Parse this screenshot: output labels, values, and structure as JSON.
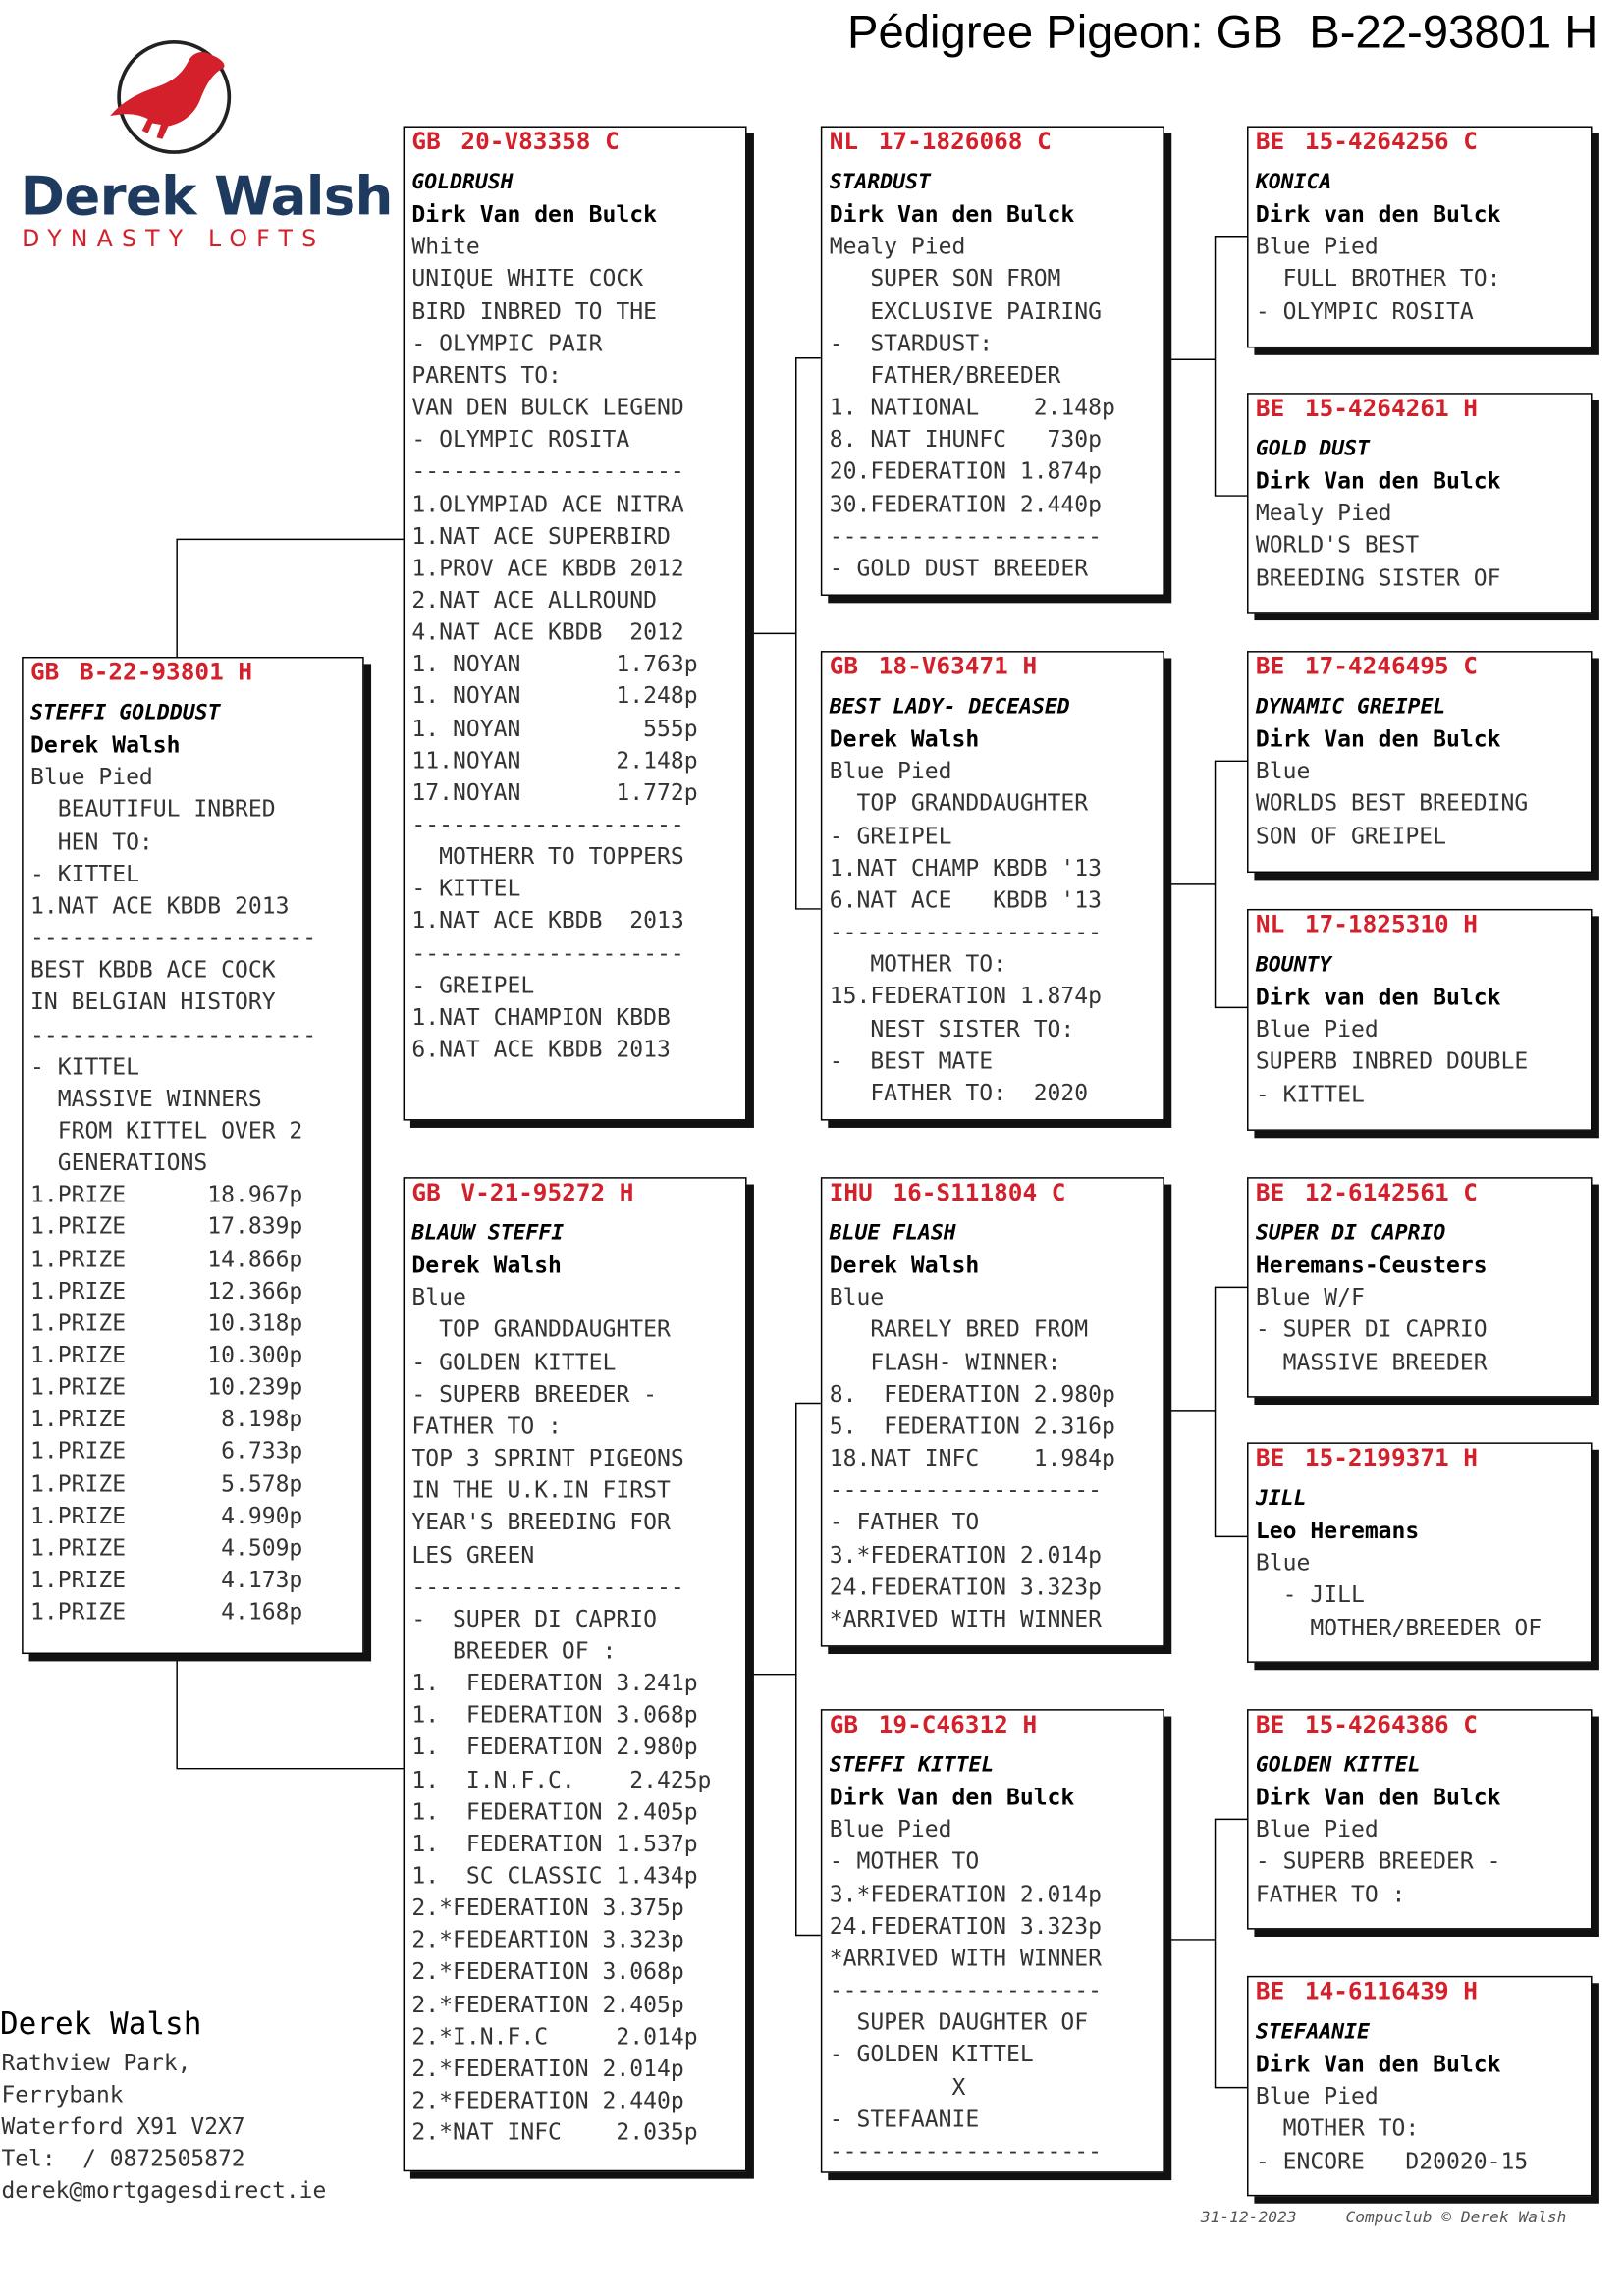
{
  "header": {
    "title": "Pédigree Pigeon: GB  B-22-93801 H"
  },
  "logo": {
    "name": "Derek Walsh",
    "tagline": "DYNASTY LOFTS"
  },
  "boxes": [
    {
      "country": "GB",
      "ring": "B-22-93801 H",
      "name": "STEFFI GOLDDUST",
      "breeder": "Derek Walsh",
      "color": "Blue Pied",
      "lines": [
        "  BEAUTIFUL INBRED",
        "  HEN TO:",
        "- KITTEL",
        "1.NAT ACE KBDB 2013",
        "---------------------",
        "BEST KBDB ACE COCK",
        "IN BELGIAN HISTORY",
        "---------------------",
        "- KITTEL",
        "  MASSIVE WINNERS",
        "  FROM KITTEL OVER 2",
        "  GENERATIONS",
        "1.PRIZE      18.967p",
        "1.PRIZE      17.839p",
        "1.PRIZE      14.866p",
        "1.PRIZE      12.366p",
        "1.PRIZE      10.318p",
        "1.PRIZE      10.300p",
        "1.PRIZE      10.239p",
        "1.PRIZE       8.198p",
        "1.PRIZE       6.733p",
        "1.PRIZE       5.578p",
        "1.PRIZE       4.990p",
        "1.PRIZE       4.509p",
        "1.PRIZE       4.173p",
        "1.PRIZE       4.168p"
      ]
    },
    {
      "country": "GB",
      "ring": "20-V83358 C",
      "name": "GOLDRUSH",
      "breeder": "Dirk Van den Bulck",
      "color": "White",
      "lines": [
        "UNIQUE WHITE COCK",
        "BIRD INBRED TO THE",
        "- OLYMPIC PAIR",
        "PARENTS TO:",
        "VAN DEN BULCK LEGEND",
        "- OLYMPIC ROSITA",
        "--------------------",
        "1.OLYMPIAD ACE NITRA",
        "1.NAT ACE SUPERBIRD",
        "1.PROV ACE KBDB 2012",
        "2.NAT ACE ALLROUND",
        "4.NAT ACE KBDB  2012",
        "1. NOYAN       1.763p",
        "1. NOYAN       1.248p",
        "1. NOYAN         555p",
        "11.NOYAN       2.148p",
        "17.NOYAN       1.772p",
        "--------------------",
        "  MOTHERR TO TOPPERS",
        "- KITTEL",
        "1.NAT ACE KBDB  2013",
        "--------------------",
        "- GREIPEL",
        "1.NAT CHAMPION KBDB",
        "6.NAT ACE KBDB 2013"
      ]
    },
    {
      "country": "GB",
      "ring": "V-21-95272 H",
      "name": "BLAUW STEFFI",
      "breeder": "Derek Walsh",
      "color": "Blue",
      "lines": [
        "  TOP GRANDDAUGHTER",
        "- GOLDEN KITTEL",
        "- SUPERB BREEDER -",
        "FATHER TO :",
        "TOP 3 SPRINT PIGEONS",
        "IN THE U.K.IN FIRST",
        "YEAR'S BREEDING FOR",
        "LES GREEN",
        "--------------------",
        "-  SUPER DI CAPRIO",
        "   BREEDER OF :",
        "1.  FEDERATION 3.241p",
        "1.  FEDERATION 3.068p",
        "1.  FEDERATION 2.980p",
        "1.  I.N.F.C.    2.425p",
        "1.  FEDERATION 2.405p",
        "1.  FEDERATION 1.537p",
        "1.  SC CLASSIC 1.434p",
        "2.*FEDERATION 3.375p",
        "2.*FEDEARTION 3.323p",
        "2.*FEDERATION 3.068p",
        "2.*FEDERATION 2.405p",
        "2.*I.N.F.C     2.014p",
        "2.*FEDERATION 2.014p",
        "2.*FEDERATION 2.440p",
        "2.*NAT INFC    2.035p"
      ]
    },
    {
      "country": "NL",
      "ring": "17-1826068 C",
      "name": "STARDUST",
      "breeder": "Dirk Van den Bulck",
      "color": "Mealy Pied",
      "lines": [
        "   SUPER SON FROM",
        "   EXCLUSIVE PAIRING",
        "-  STARDUST:",
        "   FATHER/BREEDER",
        "1. NATIONAL    2.148p",
        "8. NAT IHUNFC   730p",
        "20.FEDERATION 1.874p",
        "30.FEDERATION 2.440p",
        "--------------------",
        "- GOLD DUST BREEDER"
      ]
    },
    {
      "country": "GB",
      "ring": "18-V63471 H",
      "name": "BEST LADY- DECEASED",
      "breeder": "Derek Walsh",
      "color": "Blue Pied",
      "lines": [
        "  TOP GRANDDAUGHTER",
        "- GREIPEL",
        "1.NAT CHAMP KBDB '13",
        "6.NAT ACE   KBDB '13",
        "--------------------",
        "   MOTHER TO:",
        "15.FEDERATION 1.874p",
        "   NEST SISTER TO:",
        "-  BEST MATE",
        "   FATHER TO:  2020"
      ]
    },
    {
      "country": "IHU",
      "ring": "16-S111804 C",
      "name": "BLUE FLASH",
      "breeder": "Derek Walsh",
      "color": "Blue",
      "lines": [
        "   RARELY BRED FROM",
        "   FLASH- WINNER:",
        "8.  FEDERATION 2.980p",
        "5.  FEDERATION 2.316p",
        "18.NAT INFC    1.984p",
        "--------------------",
        "- FATHER TO",
        "3.*FEDERATION 2.014p",
        "24.FEDERATION 3.323p",
        "*ARRIVED WITH WINNER"
      ]
    },
    {
      "country": "GB",
      "ring": "19-C46312 H",
      "name": "STEFFI KITTEL",
      "breeder": "Dirk Van den Bulck",
      "color": "Blue Pied",
      "lines": [
        "- MOTHER TO",
        "3.*FEDERATION 2.014p",
        "24.FEDERATION 3.323p",
        "*ARRIVED WITH WINNER",
        "--------------------",
        "  SUPER DAUGHTER OF",
        "- GOLDEN KITTEL",
        "         X",
        "- STEFAANIE",
        "--------------------"
      ]
    },
    {
      "country": "BE",
      "ring": "15-4264256 C",
      "name": "KONICA",
      "breeder": "Dirk van den Bulck",
      "color": "Blue Pied",
      "lines": [
        "  FULL BROTHER TO:",
        "- OLYMPIC ROSITA"
      ]
    },
    {
      "country": "BE",
      "ring": "15-4264261 H",
      "name": "GOLD DUST",
      "breeder": "Dirk Van den Bulck",
      "color": "Mealy Pied",
      "lines": [
        "WORLD'S BEST",
        "BREEDING SISTER OF"
      ]
    },
    {
      "country": "BE",
      "ring": "17-4246495 C",
      "name": "DYNAMIC GREIPEL",
      "breeder": "Dirk Van den Bulck",
      "color": "Blue",
      "lines": [
        "WORLDS BEST BREEDING",
        "SON OF GREIPEL"
      ]
    },
    {
      "country": "NL",
      "ring": "17-1825310 H",
      "name": "BOUNTY",
      "breeder": "Dirk van den Bulck",
      "color": "Blue Pied",
      "lines": [
        "SUPERB INBRED DOUBLE",
        "- KITTEL"
      ]
    },
    {
      "country": "BE",
      "ring": "12-6142561 C",
      "name": "SUPER DI CAPRIO",
      "breeder": "Heremans-Ceusters",
      "color": "Blue W/F",
      "lines": [
        "- SUPER DI CAPRIO",
        "  MASSIVE BREEDER"
      ]
    },
    {
      "country": "BE",
      "ring": "15-2199371 H",
      "name": "JILL",
      "breeder": "Leo Heremans",
      "color": "Blue",
      "lines": [
        "  - JILL",
        "    MOTHER/BREEDER OF"
      ]
    },
    {
      "country": "BE",
      "ring": "15-4264386 C",
      "name": "GOLDEN KITTEL",
      "breeder": "Dirk Van den Bulck",
      "color": "Blue Pied",
      "lines": [
        "- SUPERB BREEDER -",
        "FATHER TO :"
      ]
    },
    {
      "country": "BE",
      "ring": "14-6116439 H",
      "name": "STEFAANIE",
      "breeder": "Dirk Van den Bulck",
      "color": "Blue Pied",
      "lines": [
        "  MOTHER TO:",
        "- ENCORE   D20020-15"
      ]
    }
  ],
  "contact": {
    "name": "Derek Walsh",
    "lines": [
      "Rathview Park,",
      "Ferrybank",
      "Waterford X91 V2X7",
      "Tel:  / 0872505872",
      "derek@mortgagesdirect.ie"
    ]
  },
  "footer": {
    "date": "31-12-2023",
    "credit": "Compuclub © Derek Walsh"
  }
}
